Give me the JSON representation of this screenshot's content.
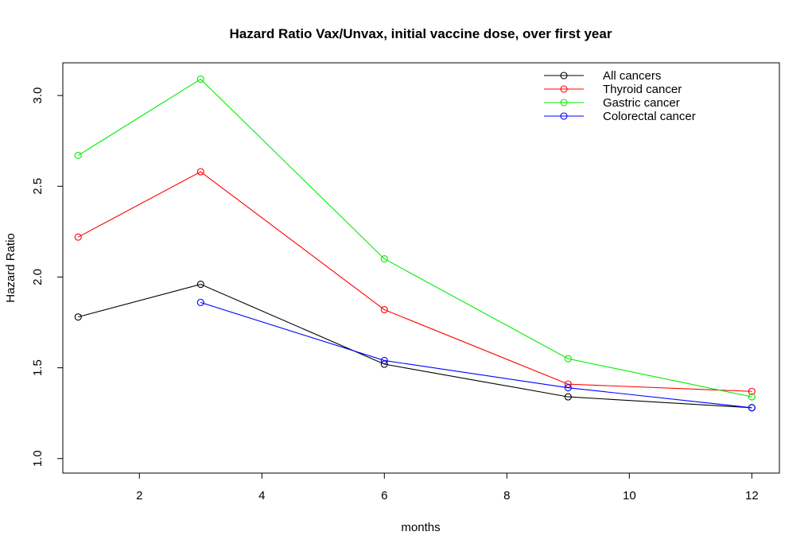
{
  "chart_data": {
    "type": "line",
    "title": "Hazard Ratio Vax/Unvax, initial vaccine dose, over first year",
    "xlabel": "months",
    "ylabel": "Hazard Ratio",
    "xlim": [
      0.75,
      12.45
    ],
    "ylim": [
      0.92,
      3.18
    ],
    "xticks": [
      2,
      4,
      6,
      8,
      10,
      12
    ],
    "yticks": [
      1.0,
      1.5,
      2.0,
      2.5,
      3.0
    ],
    "xtick_labels": [
      "2",
      "4",
      "6",
      "8",
      "10",
      "12"
    ],
    "ytick_labels": [
      "1.0",
      "1.5",
      "2.0",
      "2.5",
      "3.0"
    ],
    "grid": false,
    "legend_position": "top-right",
    "series": [
      {
        "name": "All cancers",
        "color": "#000000",
        "x": [
          1,
          3,
          6,
          9,
          12
        ],
        "y": [
          1.78,
          1.96,
          1.52,
          1.34,
          1.28
        ]
      },
      {
        "name": "Thyroid cancer",
        "color": "#ff0000",
        "x": [
          1,
          3,
          6,
          9,
          12
        ],
        "y": [
          2.22,
          2.58,
          1.82,
          1.41,
          1.37
        ]
      },
      {
        "name": "Gastric cancer",
        "color": "#00ee00",
        "x": [
          1,
          3,
          6,
          9,
          12
        ],
        "y": [
          2.67,
          3.09,
          2.1,
          1.55,
          1.34
        ]
      },
      {
        "name": "Colorectal cancer",
        "color": "#0000ff",
        "x": [
          3,
          6,
          9,
          12
        ],
        "y": [
          1.86,
          1.54,
          1.39,
          1.28
        ]
      }
    ]
  }
}
